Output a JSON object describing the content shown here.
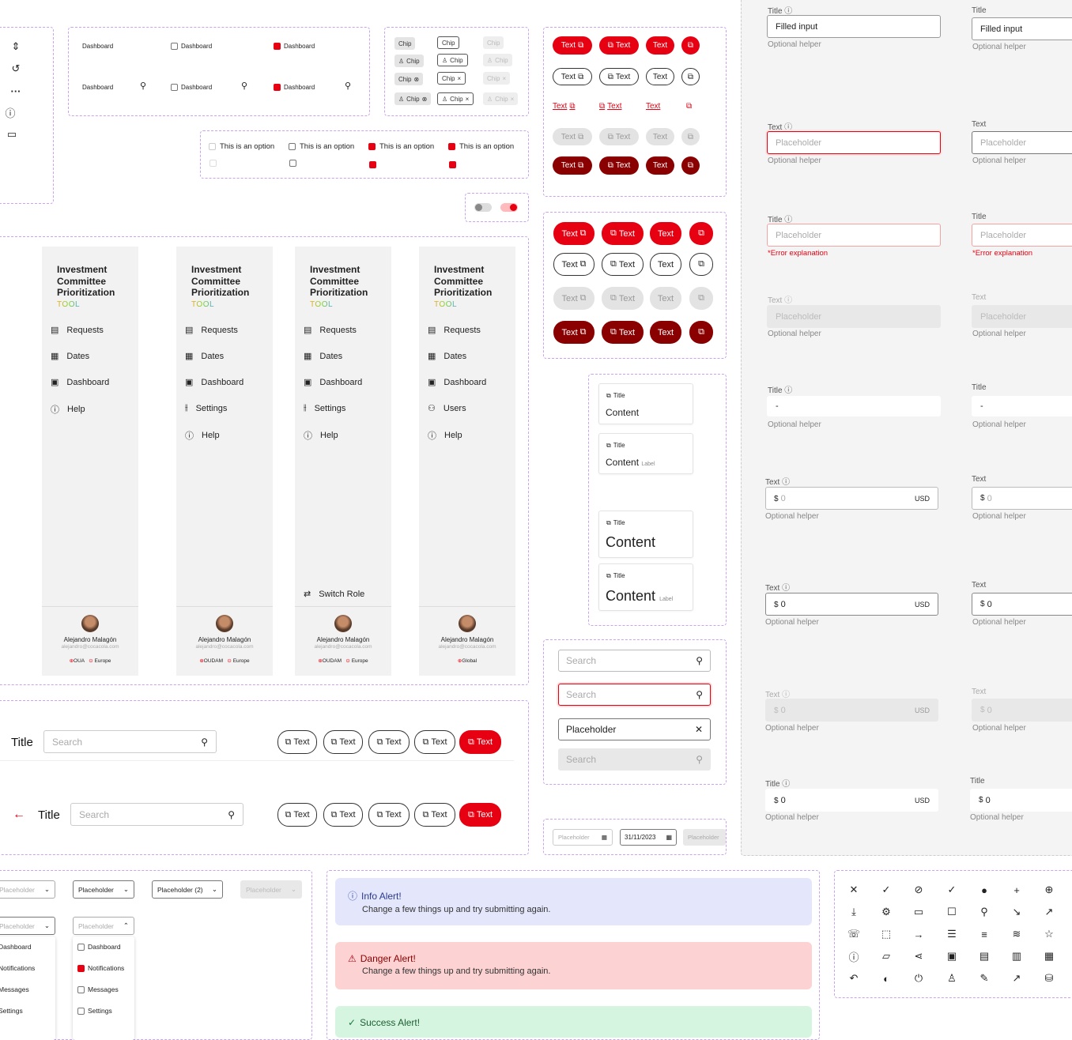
{
  "misc": {
    "chip": "Chip",
    "text": "Text",
    "option": "This is an option"
  },
  "tabs": {
    "dashboard": "Dashboard"
  },
  "sidebar": {
    "title": "Investment Committee Prioritization",
    "tool": "TOOL",
    "requests": "Requests",
    "dates": "Dates",
    "dashboard": "Dashboard",
    "help": "Help",
    "settings": "Settings",
    "users": "Users",
    "switch_role": "Switch Role",
    "user_name": "Alejandro Malagón",
    "user_email": "alejandro@cocacola.com",
    "tag_oua": "OUA",
    "tag_oudam": "OUDAM",
    "tag_europe": "Europe",
    "tag_global": "Global"
  },
  "header": {
    "title": "Title",
    "search_placeholder": "Search"
  },
  "cards": {
    "title": "Title",
    "content": "Content",
    "label": "Label"
  },
  "search": {
    "placeholder": "Search",
    "value": "Placeholder"
  },
  "date": {
    "placeholder": "Placeholder",
    "value": "31/11/2023"
  },
  "inputs": {
    "title": "Title",
    "text": "Text",
    "filled": "Filled input",
    "placeholder": "Placeholder",
    "helper": "Optional helper",
    "error": "*Error explanation",
    "dash": "-",
    "currency_symbol": "$",
    "zero": "0",
    "usd": "USD"
  },
  "dropdowns": {
    "placeholder": "Placeholder",
    "placeholder2": "Placeholder (2)",
    "dashboard": "Dashboard",
    "notifications": "Notifications",
    "messages": "Messages",
    "settings": "Settings"
  },
  "alerts": {
    "info_title": "Info Alert!",
    "danger_title": "Danger Alert!",
    "success_title": "Success Alert!",
    "message": "Change a few things up and try submitting again.",
    "info_bg": "#e4e7fb",
    "danger_bg": "#fcd2d2",
    "success_bg": "#d6f5e0"
  },
  "colors": {
    "primary": "#e60012",
    "dark": "#8a0000"
  }
}
